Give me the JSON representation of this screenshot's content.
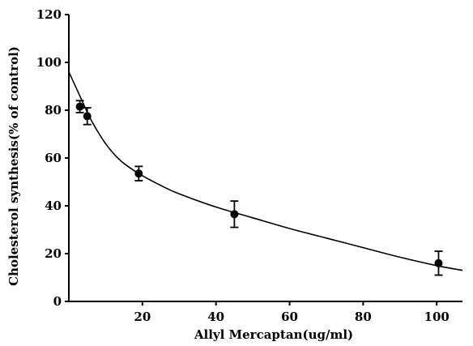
{
  "chart_data": {
    "type": "scatter",
    "title": "",
    "xlabel": "Allyl Mercaptan(ug/ml)",
    "ylabel": "Cholesterol synthesis(% of control)",
    "xlim": [
      0,
      107
    ],
    "ylim": [
      0,
      120
    ],
    "x_ticks": [
      20,
      40,
      60,
      80,
      100
    ],
    "y_ticks": [
      0,
      20,
      40,
      60,
      80,
      100,
      120
    ],
    "grid": false,
    "series": [
      {
        "points": [
          {
            "x": 3,
            "y": 81.5,
            "err": 2.5
          },
          {
            "x": 5,
            "y": 77.5,
            "err": 3.5
          },
          {
            "x": 19,
            "y": 53.5,
            "err": 3
          },
          {
            "x": 45,
            "y": 36.5,
            "err": 5.5
          },
          {
            "x": 100.5,
            "y": 16,
            "err": 5
          }
        ]
      }
    ],
    "fit_curve": [
      {
        "x": 0,
        "y": 96
      },
      {
        "x": 3,
        "y": 86
      },
      {
        "x": 6,
        "y": 76
      },
      {
        "x": 10,
        "y": 66
      },
      {
        "x": 14,
        "y": 59
      },
      {
        "x": 19,
        "y": 53.5
      },
      {
        "x": 25,
        "y": 48.5
      },
      {
        "x": 30,
        "y": 45
      },
      {
        "x": 40,
        "y": 39.5
      },
      {
        "x": 50,
        "y": 35
      },
      {
        "x": 60,
        "y": 30.5
      },
      {
        "x": 70,
        "y": 26.5
      },
      {
        "x": 80,
        "y": 22.5
      },
      {
        "x": 90,
        "y": 18.5
      },
      {
        "x": 100,
        "y": 15
      },
      {
        "x": 107,
        "y": 13
      }
    ],
    "colors": {
      "ink": "#000000",
      "background": "#ffffff"
    }
  }
}
